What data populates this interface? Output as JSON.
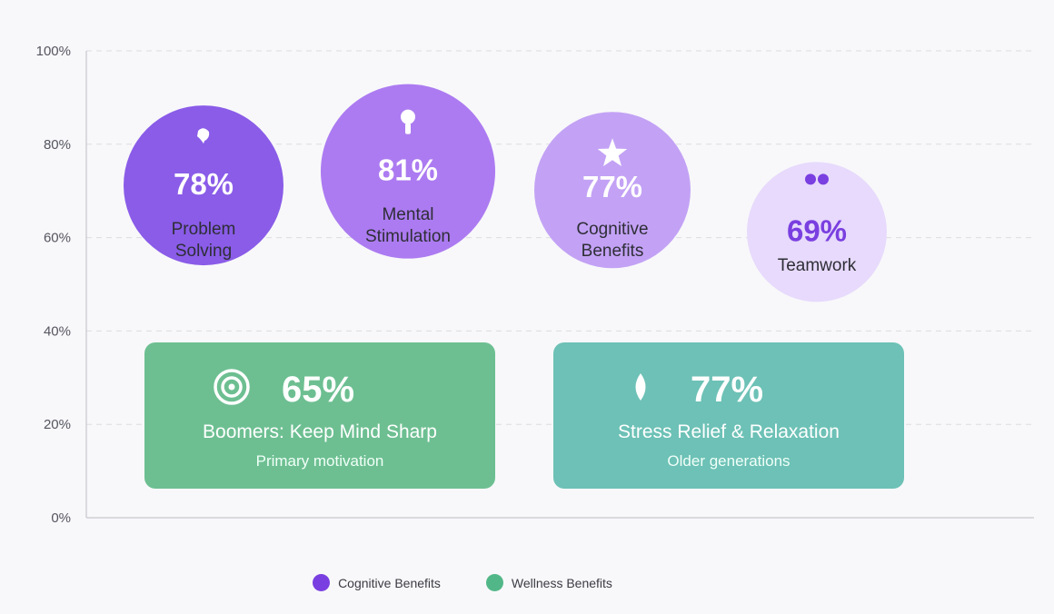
{
  "chart_data": {
    "type": "bubble-and-card infographic",
    "y_axis": {
      "ticks": [
        "0%",
        "20%",
        "40%",
        "60%",
        "80%",
        "100%"
      ],
      "range": [
        0,
        100
      ],
      "grid": true
    },
    "bubbles": [
      {
        "label_lines": [
          "Problem",
          "Solving"
        ],
        "value": 78,
        "value_label": "78%",
        "icon": "head-silhouette-icon",
        "color": "#8a5ce8",
        "text_color": "#ffffff"
      },
      {
        "label_lines": [
          "Mental",
          "Stimulation"
        ],
        "value": 81,
        "value_label": "81%",
        "icon": "lightbulb-icon",
        "color": "#ac7bf1",
        "text_color": "#ffffff"
      },
      {
        "label_lines": [
          "Cognitive",
          "Benefits"
        ],
        "value": 77,
        "value_label": "77%",
        "icon": "star-icon",
        "color": "#c3a2f5",
        "text_color": "#ffffff"
      },
      {
        "label_lines": [
          "Teamwork"
        ],
        "value": 69,
        "value_label": "69%",
        "icon": "people-icon",
        "color": "#e7dafc",
        "text_color": "#7a3fe0"
      }
    ],
    "cards": [
      {
        "value": 65,
        "value_label": "65%",
        "title": "Boomers: Keep Mind Sharp",
        "subtitle": "Primary motivation",
        "icon": "target-icon",
        "color": "#6dbf91"
      },
      {
        "value": 77,
        "value_label": "77%",
        "title": "Stress Relief & Relaxation",
        "subtitle": "Older generations",
        "icon": "leaf-icon",
        "color": "#6dc1b6"
      }
    ],
    "legend": [
      {
        "label": "Cognitive Benefits",
        "color": "#7a3fe0"
      },
      {
        "label": "Wellness Benefits",
        "color": "#52b788"
      }
    ],
    "legend_placement": "bottom-center"
  }
}
